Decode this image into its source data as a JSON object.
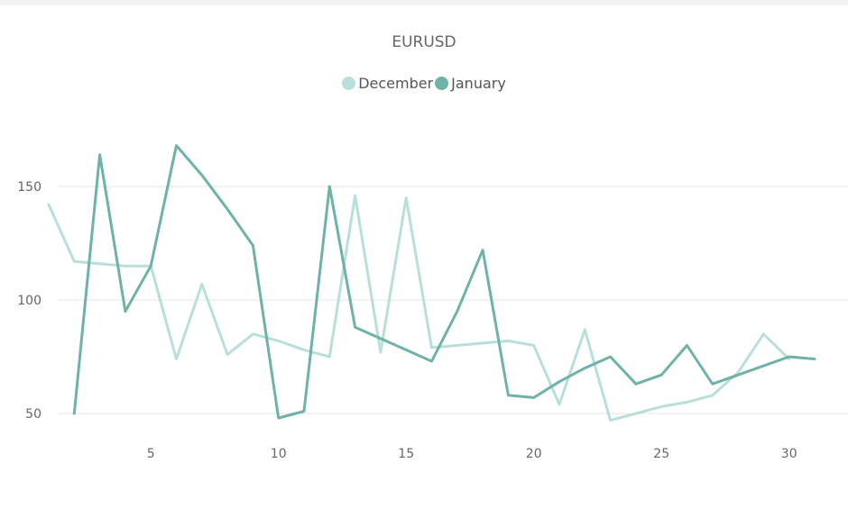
{
  "chart_data": {
    "type": "line",
    "title": "EURUSD",
    "xlabel": "",
    "ylabel": "",
    "x_ticks": [
      5,
      10,
      15,
      20,
      25,
      30
    ],
    "y_ticks": [
      50,
      100,
      150
    ],
    "xlim": [
      0.5,
      31.3
    ],
    "ylim": [
      40,
      185
    ],
    "grid": "horizontal",
    "legend_position": "top-center",
    "series": [
      {
        "name": "December",
        "color": "#b8dfda",
        "x": [
          1,
          2,
          3,
          4,
          5,
          6,
          7,
          8,
          9,
          10,
          11,
          12,
          13,
          14,
          15,
          16,
          17,
          18,
          19,
          20,
          21,
          22,
          23,
          24,
          25,
          26,
          27,
          28,
          29,
          30
        ],
        "values": [
          142,
          117,
          116,
          115,
          115,
          74,
          107,
          76,
          85,
          82,
          78,
          75,
          146,
          77,
          145,
          79,
          80,
          81,
          82,
          80,
          54,
          87,
          47,
          50,
          53,
          55,
          58,
          68,
          85,
          74
        ]
      },
      {
        "name": "January",
        "color": "#6fb2a8",
        "x": [
          2,
          3,
          4,
          5,
          6,
          7,
          8,
          9,
          10,
          11,
          12,
          13,
          14,
          15,
          16,
          17,
          18,
          19,
          20,
          21,
          22,
          23,
          24,
          25,
          26,
          27,
          28,
          29,
          30,
          31
        ],
        "values": [
          50,
          164,
          95,
          115,
          168,
          155,
          140,
          124,
          48,
          51,
          150,
          88,
          83,
          78,
          73,
          95,
          122,
          58,
          57,
          64,
          70,
          75,
          63,
          67,
          80,
          63,
          67,
          71,
          75,
          74
        ]
      }
    ]
  }
}
